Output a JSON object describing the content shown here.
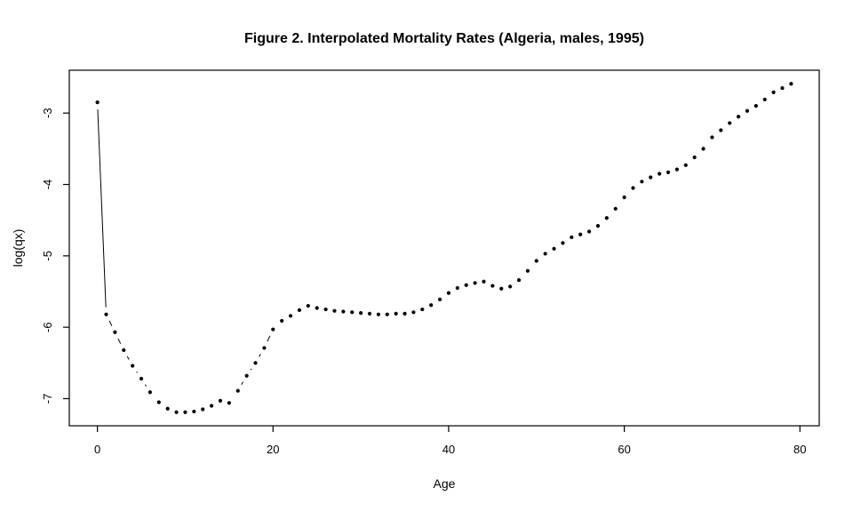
{
  "chart_data": {
    "type": "scatter",
    "title": "Figure 2. Interpolated Mortality Rates (Algeria, males, 1995)",
    "xlabel": "Age",
    "ylabel": "log(qx)",
    "x_ticks": [
      0,
      20,
      40,
      60,
      80
    ],
    "y_ticks": [
      -3,
      -4,
      -5,
      -6,
      -7
    ],
    "x_tick_labels": [
      "0",
      "20",
      "40",
      "60",
      "80"
    ],
    "y_tick_labels": [
      "-3",
      "-4",
      "-5",
      "-6",
      "-7"
    ],
    "xlim": [
      -3.2,
      82.2
    ],
    "ylim": [
      -7.38,
      -2.4
    ],
    "grid": false,
    "legend": "none",
    "style": "filled points joined by broken line segments (R plot type='b', pch=19)",
    "point_color": "#000000",
    "line_color": "#000000",
    "x": [
      0,
      1,
      2,
      3,
      4,
      5,
      6,
      7,
      8,
      9,
      10,
      11,
      12,
      13,
      14,
      15,
      16,
      17,
      18,
      19,
      20,
      21,
      22,
      23,
      24,
      25,
      26,
      27,
      28,
      29,
      30,
      31,
      32,
      33,
      34,
      35,
      36,
      37,
      38,
      39,
      40,
      41,
      42,
      43,
      44,
      45,
      46,
      47,
      48,
      49,
      50,
      51,
      52,
      53,
      54,
      55,
      56,
      57,
      58,
      59,
      60,
      61,
      62,
      63,
      64,
      65,
      66,
      67,
      68,
      69,
      70,
      71,
      72,
      73,
      74,
      75,
      76,
      77,
      78,
      79
    ],
    "y": [
      -2.85,
      -5.82,
      -6.07,
      -6.32,
      -6.54,
      -6.72,
      -6.91,
      -7.05,
      -7.14,
      -7.19,
      -7.19,
      -7.18,
      -7.15,
      -7.1,
      -7.03,
      -7.06,
      -6.89,
      -6.68,
      -6.5,
      -6.29,
      -6.03,
      -5.91,
      -5.84,
      -5.76,
      -5.7,
      -5.73,
      -5.75,
      -5.77,
      -5.78,
      -5.79,
      -5.8,
      -5.81,
      -5.82,
      -5.82,
      -5.81,
      -5.81,
      -5.79,
      -5.75,
      -5.69,
      -5.61,
      -5.52,
      -5.45,
      -5.41,
      -5.38,
      -5.36,
      -5.42,
      -5.46,
      -5.43,
      -5.34,
      -5.21,
      -5.07,
      -4.97,
      -4.9,
      -4.82,
      -4.74,
      -4.7,
      -4.66,
      -4.58,
      -4.47,
      -4.34,
      -4.18,
      -4.05,
      -3.96,
      -3.9,
      -3.85,
      -3.83,
      -3.79,
      -3.73,
      -3.62,
      -3.5,
      -3.34,
      -3.24,
      -3.14,
      -3.05,
      -2.97,
      -2.9,
      -2.81,
      -2.71,
      -2.65,
      -2.59
    ]
  }
}
